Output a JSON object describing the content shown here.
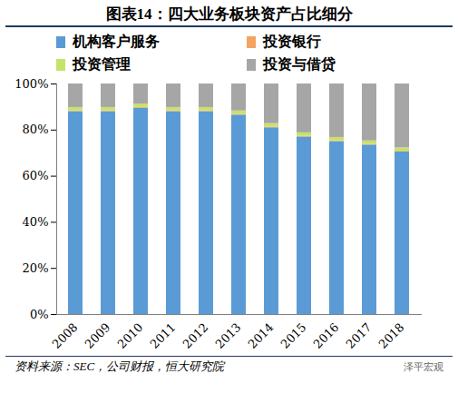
{
  "chart_data": {
    "type": "bar",
    "title": "图表14：四大业务板块资产占比细分",
    "source": "资料来源：SEC，公司财报，恒大研究院",
    "watermark": "泽平宏观",
    "stacked": true,
    "grid": false,
    "legend": "top",
    "categories": [
      "2008",
      "2009",
      "2010",
      "2011",
      "2012",
      "2013",
      "2014",
      "2015",
      "2016",
      "2017",
      "2018"
    ],
    "series": [
      {
        "name": "机构客户服务",
        "color": "#5b9bd5",
        "values": [
          88,
          88,
          89.5,
          88,
          88,
          86.5,
          81,
          77,
          75,
          73.5,
          70.5
        ]
      },
      {
        "name": "投资银行",
        "color": "#f4a460",
        "values": [
          0.3,
          0.3,
          0.3,
          0.3,
          0.3,
          0.3,
          0.3,
          0.3,
          0.3,
          0.3,
          0.3
        ]
      },
      {
        "name": "投资管理",
        "color": "#c5e36b",
        "values": [
          1.5,
          1.5,
          1.5,
          1.5,
          1.5,
          1.5,
          1.5,
          1.5,
          1.5,
          1.5,
          1.5
        ]
      },
      {
        "name": "投资与借贷",
        "color": "#a6a6a6",
        "values": [
          10.2,
          10.2,
          8.7,
          10.2,
          10.2,
          11.7,
          17.2,
          21.2,
          23.2,
          24.7,
          27.7
        ]
      }
    ],
    "ylim": [
      0,
      100
    ],
    "yticks": [
      {
        "value": 0,
        "label": "0%"
      },
      {
        "value": 20,
        "label": "20%"
      },
      {
        "value": 40,
        "label": "40%"
      },
      {
        "value": 60,
        "label": "60%"
      },
      {
        "value": 80,
        "label": "80%"
      },
      {
        "value": 100,
        "label": "100%"
      }
    ]
  }
}
